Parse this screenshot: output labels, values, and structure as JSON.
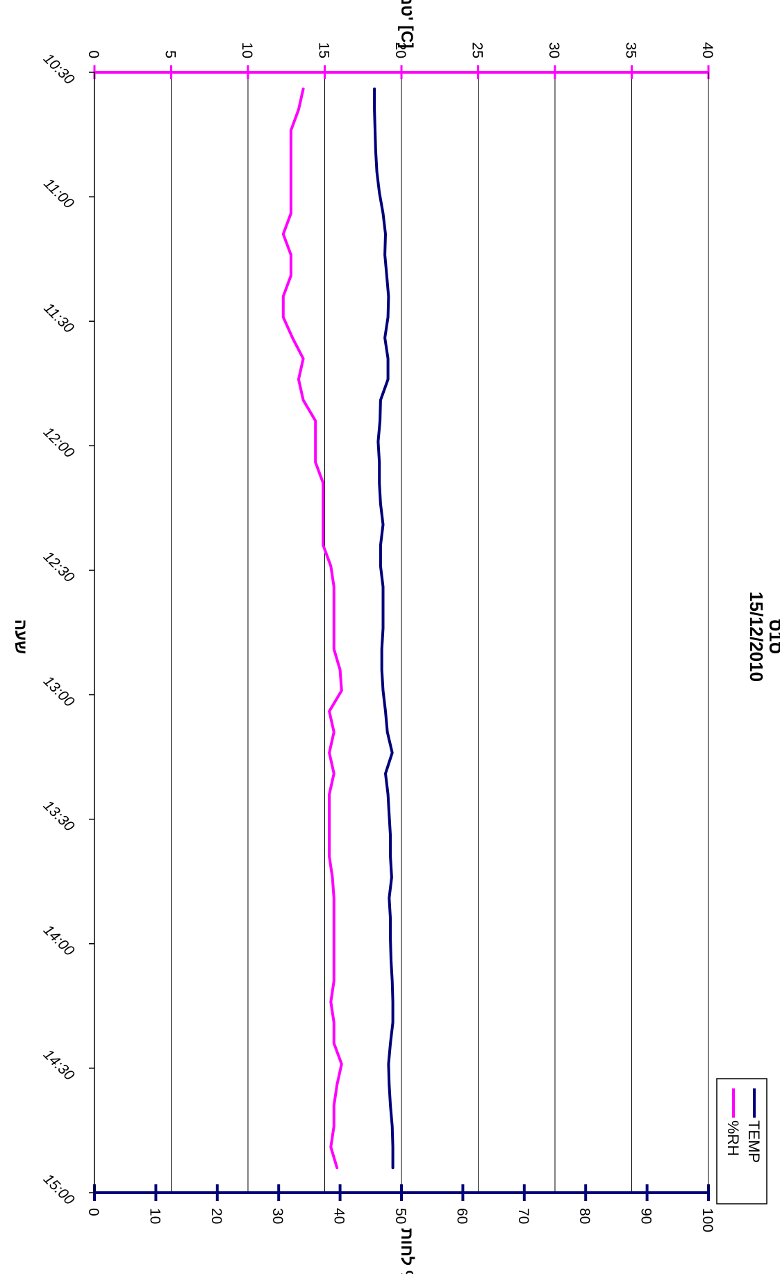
{
  "chart_data": {
    "type": "line",
    "title": "ס1ס\n15/12/2010",
    "title_lines": [
      "ס1ס",
      "15/12/2010"
    ],
    "xlabel": "שעה",
    "y_left_label": "לחות %",
    "y_right_label": "טמפ' [C]",
    "x_range": [
      "10:30",
      "15:00"
    ],
    "x_ticks": [
      "10:30",
      "11:00",
      "11:30",
      "12:00",
      "12:30",
      "13:00",
      "13:30",
      "14:00",
      "14:30",
      "15:00"
    ],
    "y_left_range": [
      0,
      100
    ],
    "y_left_ticks": [
      "0",
      "10",
      "20",
      "30",
      "40",
      "50",
      "60",
      "70",
      "80",
      "90",
      "100"
    ],
    "y_right_range": [
      0,
      40
    ],
    "y_right_ticks": [
      "0",
      "5",
      "10",
      "15",
      "20",
      "25",
      "30",
      "35",
      "40"
    ],
    "grid": true,
    "legend_position": "top-right",
    "orientation": "rotated-90-clockwise",
    "series": [
      {
        "name": "TEMP",
        "axis": "left",
        "color": "#00007a",
        "x": [
          "10:34",
          "10:39",
          "10:44",
          "10:49",
          "10:54",
          "10:59",
          "11:04",
          "11:09",
          "11:14",
          "11:19",
          "11:24",
          "11:29",
          "11:34",
          "11:39",
          "11:44",
          "11:49",
          "11:54",
          "11:59",
          "12:04",
          "12:09",
          "12:14",
          "12:19",
          "12:24",
          "12:29",
          "12:34",
          "12:39",
          "12:44",
          "12:49",
          "12:54",
          "12:59",
          "13:04",
          "13:09",
          "13:14",
          "13:19",
          "13:24",
          "13:29",
          "13:34",
          "13:39",
          "13:44",
          "13:49",
          "13:54",
          "13:59",
          "14:04",
          "14:09",
          "14:14",
          "14:19",
          "14:24",
          "14:29",
          "14:34",
          "14:39",
          "14:44",
          "14:49",
          "14:54"
        ],
        "values": [
          45.6,
          45.6,
          45.7,
          45.8,
          46.0,
          46.4,
          47.0,
          47.4,
          47.3,
          47.6,
          47.9,
          47.8,
          47.3,
          47.8,
          47.8,
          46.6,
          46.5,
          46.2,
          46.4,
          46.4,
          46.6,
          47.0,
          46.6,
          46.6,
          47.0,
          47.0,
          47.0,
          46.8,
          46.8,
          47.0,
          47.4,
          47.7,
          48.5,
          47.4,
          47.8,
          48.0,
          48.2,
          48.2,
          48.4,
          48.0,
          48.2,
          48.2,
          48.3,
          48.5,
          48.6,
          48.6,
          48.2,
          47.9,
          48.0,
          48.2,
          48.5,
          48.6,
          48.6
        ]
      },
      {
        "name": "%RH",
        "axis": "right",
        "color": "#ff00ff",
        "x": [
          "10:34",
          "10:39",
          "10:44",
          "10:49",
          "10:54",
          "10:59",
          "11:04",
          "11:09",
          "11:14",
          "11:19",
          "11:24",
          "11:29",
          "11:34",
          "11:39",
          "11:44",
          "11:49",
          "11:54",
          "11:59",
          "12:04",
          "12:09",
          "12:14",
          "12:19",
          "12:24",
          "12:29",
          "12:34",
          "12:39",
          "12:44",
          "12:49",
          "12:54",
          "12:59",
          "13:04",
          "13:09",
          "13:14",
          "13:19",
          "13:24",
          "13:29",
          "13:34",
          "13:39",
          "13:44",
          "13:49",
          "13:54",
          "13:59",
          "14:04",
          "14:09",
          "14:14",
          "14:19",
          "14:24",
          "14:29",
          "14:34",
          "14:39",
          "14:44",
          "14:49",
          "14:54"
        ],
        "values": [
          13.6,
          13.3,
          12.8,
          12.8,
          12.8,
          12.8,
          12.8,
          12.3,
          12.8,
          12.8,
          12.3,
          12.3,
          12.9,
          13.6,
          13.3,
          13.6,
          14.4,
          14.4,
          14.4,
          14.9,
          14.9,
          14.9,
          14.9,
          15.4,
          15.6,
          15.6,
          15.6,
          15.6,
          16.0,
          16.1,
          15.3,
          15.6,
          15.3,
          15.6,
          15.3,
          15.3,
          15.3,
          15.3,
          15.5,
          15.6,
          15.6,
          15.6,
          15.6,
          15.6,
          15.4,
          15.6,
          15.6,
          16.1,
          15.8,
          15.6,
          15.6,
          15.4,
          15.8
        ]
      }
    ]
  }
}
